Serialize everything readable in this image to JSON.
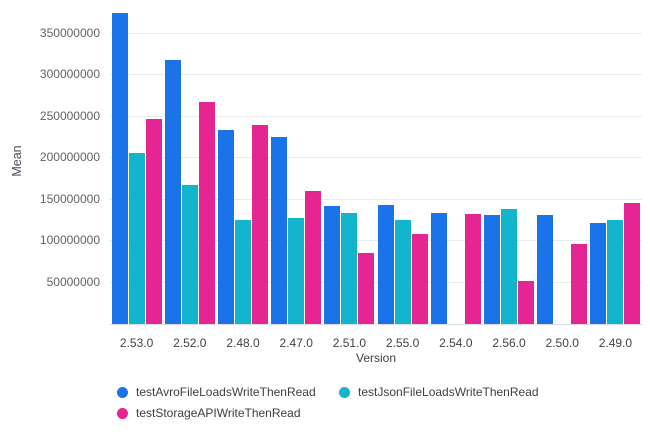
{
  "chart_data": {
    "type": "bar",
    "title": "",
    "xlabel": "Version",
    "ylabel": "Mean",
    "categories": [
      "2.53.0",
      "2.52.0",
      "2.48.0",
      "2.47.0",
      "2.51.0",
      "2.55.0",
      "2.54.0",
      "2.56.0",
      "2.50.0",
      "2.49.0"
    ],
    "series": [
      {
        "name": "testAvroFileLoadsWriteThenRead",
        "color": "#1a73e8",
        "values": [
          375000000,
          318000000,
          234000000,
          226000000,
          142000000,
          143000000,
          134000000,
          132000000,
          131000000,
          122000000
        ]
      },
      {
        "name": "testJsonFileLoadsWriteThenRead",
        "color": "#12b5cb",
        "values": [
          206000000,
          168000000,
          125000000,
          128000000,
          134000000,
          125000000,
          null,
          139000000,
          null,
          125000000
        ]
      },
      {
        "name": "testStorageAPIWriteThenRead",
        "color": "#e52592",
        "values": [
          247000000,
          268000000,
          240000000,
          160000000,
          86000000,
          108000000,
          133000000,
          52000000,
          96000000,
          146000000
        ]
      }
    ],
    "y_ticks": [
      50000000,
      100000000,
      150000000,
      200000000,
      250000000,
      300000000,
      350000000
    ],
    "ylim": [
      0,
      381000000
    ],
    "grid": true,
    "legend_position": "bottom"
  },
  "colors": {
    "background": "#ffffff",
    "gridline": "#e9eaec",
    "axis_line": "#d7dbe4",
    "tick_label": "#5f6368",
    "axis_title": "#424242",
    "legend_text": "#3c4043"
  }
}
